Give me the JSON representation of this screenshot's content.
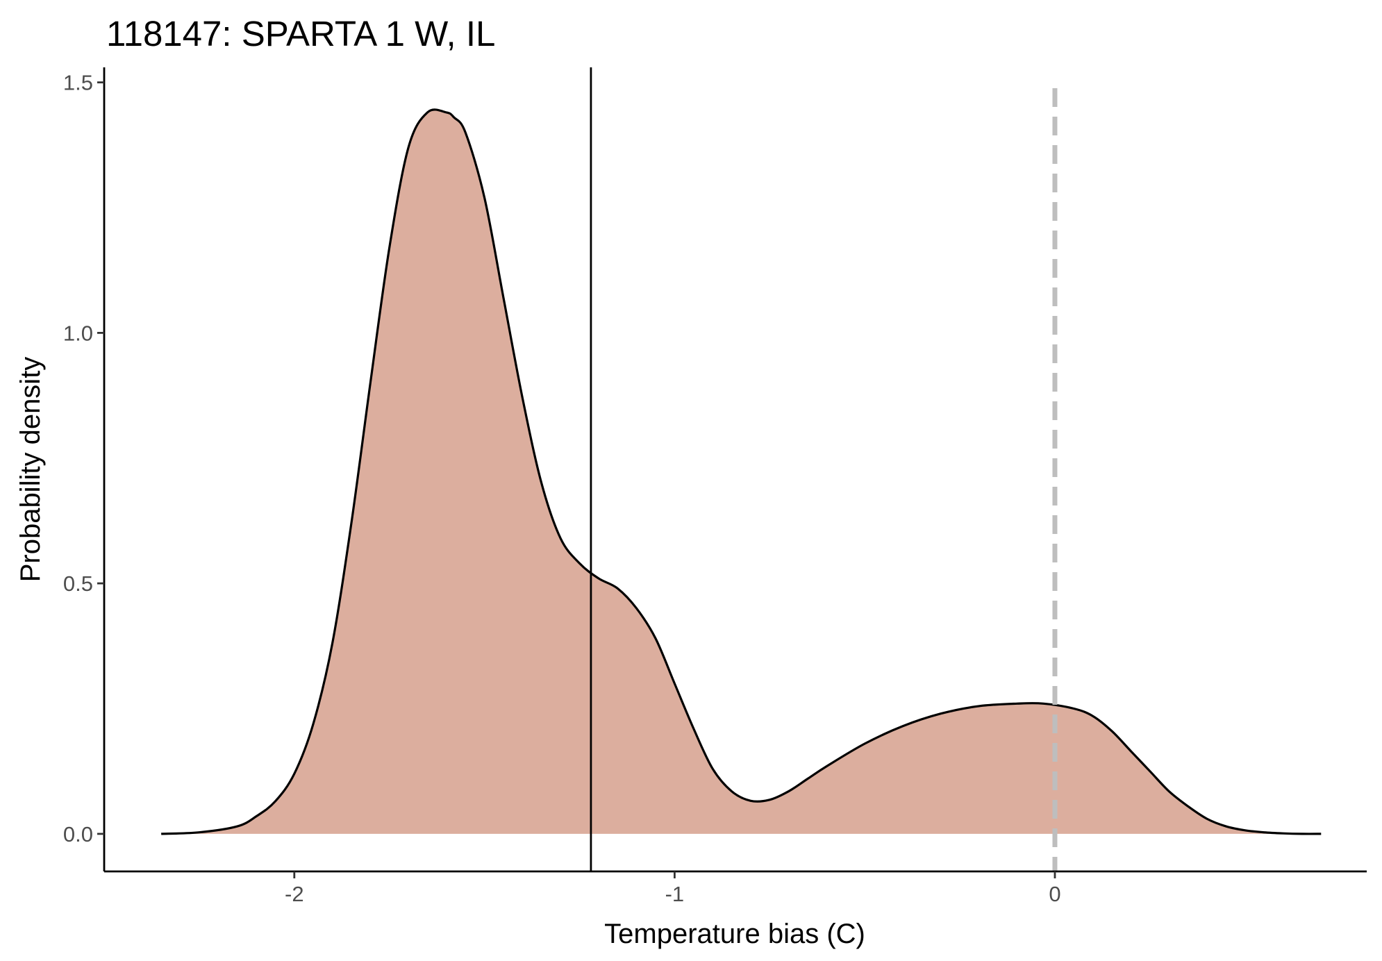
{
  "chart_data": {
    "type": "area",
    "title": "118147: SPARTA 1 W, IL",
    "xlabel": "Temperature bias (C)",
    "ylabel": "Probability density",
    "xlim": [
      -2.5,
      0.82
    ],
    "ylim": [
      -0.075,
      1.53
    ],
    "x_ticks": [
      -2,
      -1,
      0
    ],
    "x_tick_labels": [
      "-2",
      "-1",
      "0"
    ],
    "y_ticks": [
      0.0,
      0.5,
      1.0,
      1.5
    ],
    "y_tick_labels": [
      "0.0",
      "0.5",
      "1.0",
      "1.5"
    ],
    "grid": false,
    "legend": "none",
    "fill_color": "#dcae9e",
    "line_color": "#000000",
    "series": [
      {
        "x": [
          -2.35,
          -2.25,
          -2.15,
          -2.1,
          -2.05,
          -2.0,
          -1.95,
          -1.9,
          -1.85,
          -1.8,
          -1.75,
          -1.7,
          -1.65,
          -1.6,
          -1.58,
          -1.55,
          -1.5,
          -1.45,
          -1.4,
          -1.35,
          -1.3,
          -1.25,
          -1.2,
          -1.15,
          -1.1,
          -1.05,
          -1.0,
          -0.95,
          -0.9,
          -0.85,
          -0.8,
          -0.75,
          -0.7,
          -0.65,
          -0.6,
          -0.5,
          -0.4,
          -0.3,
          -0.2,
          -0.1,
          -0.03,
          0.05,
          0.1,
          0.15,
          0.2,
          0.25,
          0.3,
          0.35,
          0.4,
          0.45,
          0.5,
          0.55,
          0.6,
          0.65,
          0.7
        ],
        "y": [
          0.0,
          0.003,
          0.015,
          0.035,
          0.065,
          0.12,
          0.22,
          0.38,
          0.62,
          0.9,
          1.17,
          1.37,
          1.44,
          1.44,
          1.43,
          1.4,
          1.27,
          1.07,
          0.87,
          0.7,
          0.59,
          0.54,
          0.51,
          0.49,
          0.45,
          0.39,
          0.3,
          0.21,
          0.13,
          0.085,
          0.066,
          0.068,
          0.085,
          0.11,
          0.135,
          0.18,
          0.215,
          0.24,
          0.255,
          0.26,
          0.26,
          0.25,
          0.235,
          0.205,
          0.165,
          0.125,
          0.085,
          0.055,
          0.03,
          0.015,
          0.007,
          0.003,
          0.001,
          0.0,
          0.0
        ]
      }
    ],
    "reference_lines": [
      {
        "x": -1.22,
        "style": "solid",
        "color": "#000000"
      },
      {
        "x": 0.0,
        "style": "dashed",
        "color": "#bebebe"
      }
    ]
  }
}
